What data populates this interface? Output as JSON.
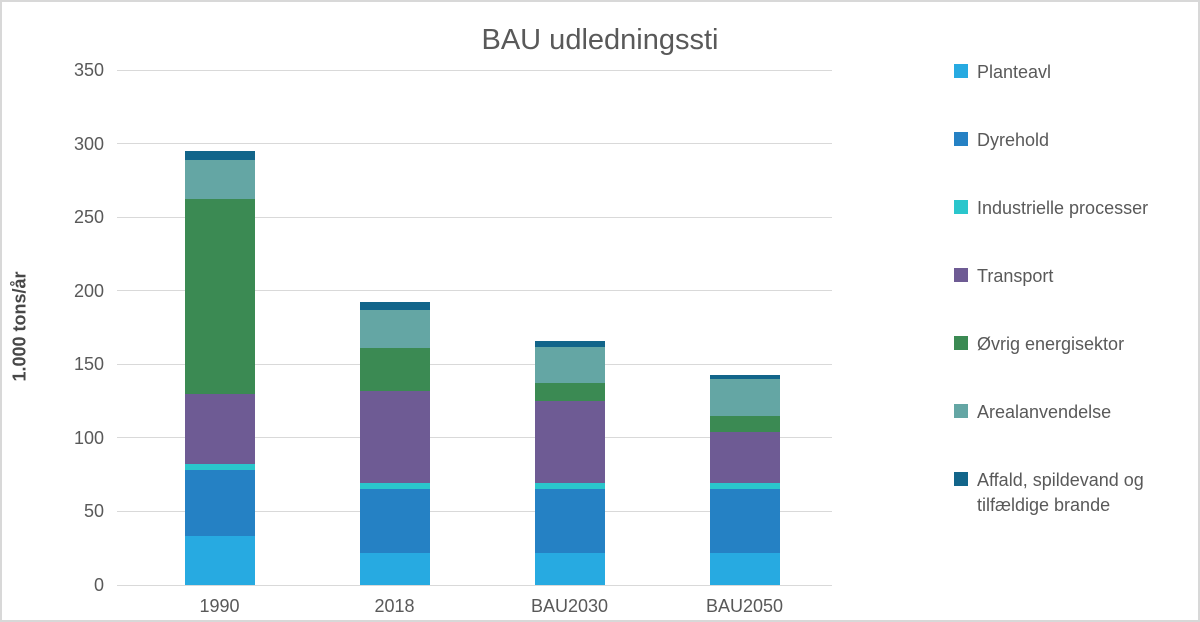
{
  "chart_data": {
    "type": "bar",
    "stacked": true,
    "title": "BAU udledningssti",
    "xlabel": "",
    "ylabel": "1.000 tons/år",
    "categories": [
      "1990",
      "2018",
      "BAU2030",
      "BAU2050"
    ],
    "series": [
      {
        "name": "Planteavl",
        "color": "#27aae1",
        "values": [
          33,
          22,
          22,
          22
        ]
      },
      {
        "name": "Dyrehold",
        "color": "#2581c4",
        "values": [
          45,
          43,
          43,
          43
        ]
      },
      {
        "name": "Industrielle processer",
        "color": "#2ac6cc",
        "values": [
          4,
          4,
          4,
          4
        ]
      },
      {
        "name": "Transport",
        "color": "#6e5b94",
        "values": [
          48,
          63,
          56,
          35
        ]
      },
      {
        "name": "Øvrig energisektor",
        "color": "#3b8a53",
        "values": [
          132,
          29,
          12,
          11
        ]
      },
      {
        "name": "Arealanvendelse",
        "color": "#64a6a4",
        "values": [
          27,
          26,
          25,
          25
        ]
      },
      {
        "name": "Affald, spildevand og tilfældige brande",
        "color": "#12658a",
        "values": [
          6,
          5,
          4,
          3
        ]
      }
    ],
    "stack_totals": [
      295,
      192,
      166,
      143
    ],
    "ylim": [
      0,
      350
    ],
    "yticks": [
      0,
      50,
      100,
      150,
      200,
      250,
      300,
      350
    ],
    "grid": true,
    "legend_position": "right"
  },
  "frame": {
    "background_color": "#ffffff",
    "border_color": "#d8d8d8",
    "gridline_color": "#d9d9d9",
    "text_color": "#595959"
  }
}
